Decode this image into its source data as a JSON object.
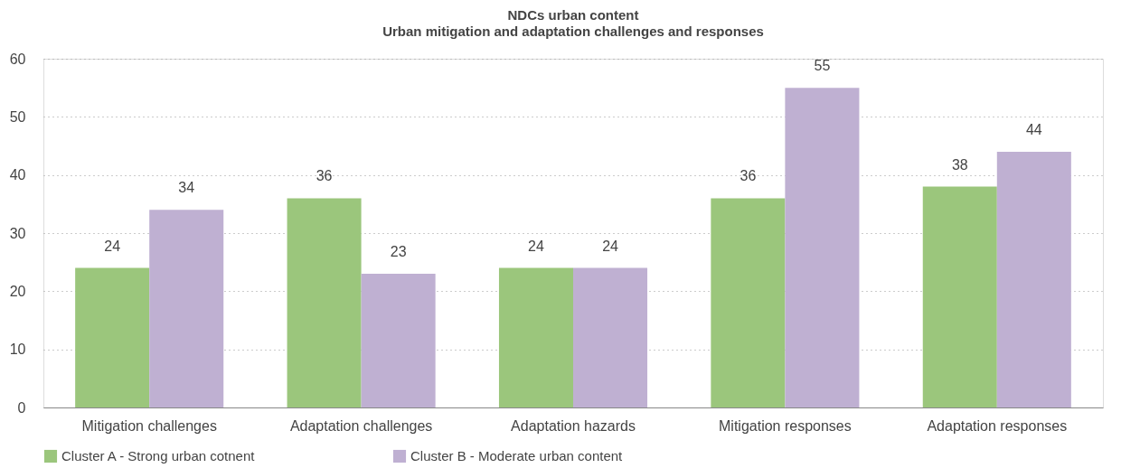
{
  "chart_data": {
    "type": "bar",
    "title": "NDCs urban content",
    "subtitle": "Urban mitigation and adaptation challenges and responses",
    "categories": [
      "Mitigation challenges",
      "Adaptation challenges",
      "Adaptation hazards",
      "Mitigation responses",
      "Adaptation responses"
    ],
    "series": [
      {
        "name": "Cluster A - Strong urban cotnent",
        "color": "#9bc67c",
        "values": [
          24,
          36,
          24,
          36,
          38
        ]
      },
      {
        "name": "Cluster B - Moderate urban content",
        "color": "#bfb0d2",
        "values": [
          34,
          23,
          24,
          55,
          44
        ]
      }
    ],
    "ylim": [
      0,
      60
    ],
    "yticks": [
      0,
      10,
      20,
      30,
      40,
      50,
      60
    ],
    "grid": "y",
    "legend": "bottom",
    "data_labels": true
  }
}
